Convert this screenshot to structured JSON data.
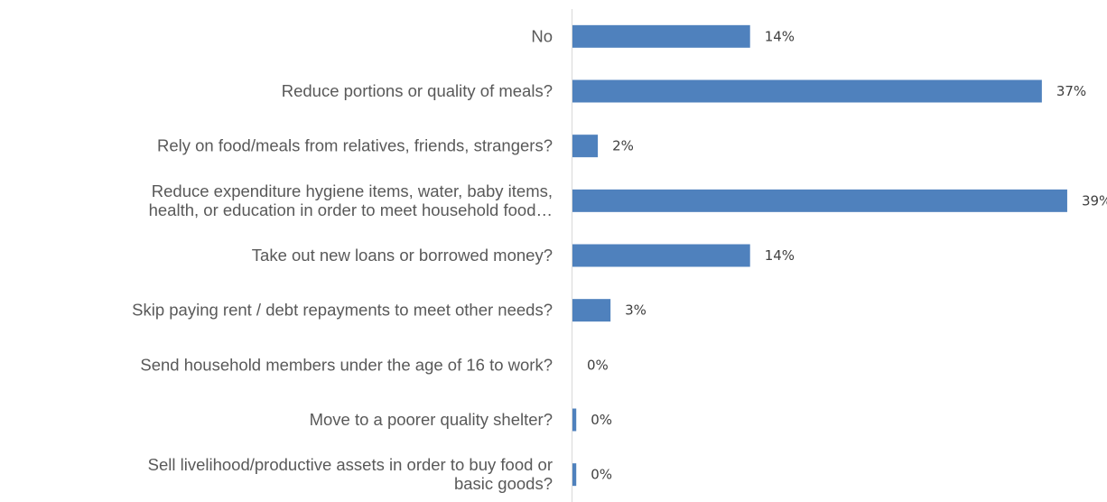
{
  "chart_data": {
    "type": "bar",
    "orientation": "horizontal",
    "title": "",
    "xlabel": "",
    "ylabel": "",
    "categories": [
      [
        "No"
      ],
      [
        "Reduce portions or quality of meals?"
      ],
      [
        "Rely on food/meals from relatives, friends, strangers?"
      ],
      [
        "Reduce expenditure hygiene items, water, baby items,",
        "health, or education in order to meet household food…"
      ],
      [
        "Take out new loans or borrowed money?"
      ],
      [
        "Skip paying rent / debt repayments to meet other needs?"
      ],
      [
        "Send household members under the age of 16 to work?"
      ],
      [
        "Move to a poorer quality shelter?"
      ],
      [
        "Sell livelihood/productive assets in order to buy food or",
        "basic goods?"
      ]
    ],
    "values": [
      14,
      37,
      2,
      39,
      14,
      3,
      0,
      0.3,
      0.3
    ],
    "data_labels": [
      "14%",
      "37%",
      "2%",
      "39%",
      "14%",
      "3%",
      "0%",
      "0%",
      "0%"
    ],
    "xlim": [
      0,
      40
    ],
    "bar_color": "#4f81bd",
    "axis_color": "#d9d9d9",
    "grid": false,
    "legend": "none"
  }
}
